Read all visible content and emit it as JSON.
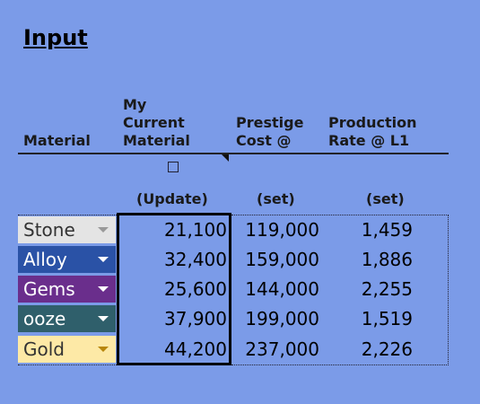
{
  "title": "Input",
  "headers": {
    "material": "Material",
    "current": [
      "My",
      "Current",
      "Material"
    ],
    "prestige": [
      "Prestige",
      "Cost @"
    ],
    "production": [
      "Production",
      "Rate @ L1"
    ]
  },
  "subheaders": {
    "current": "(Update)",
    "prestige": "(set)",
    "production": "(set)"
  },
  "rows": [
    {
      "material": "Stone",
      "bg": "#e4e4e4",
      "fg": "#333333",
      "arrow": "#999999",
      "current": "21,100",
      "prestige": "119,000",
      "rate": "1,459"
    },
    {
      "material": "Alloy",
      "bg": "#2a52a6",
      "fg": "#ffffff",
      "arrow": "#ffffff",
      "current": "32,400",
      "prestige": "159,000",
      "rate": "1,886"
    },
    {
      "material": "Gems",
      "bg": "#6a2e8c",
      "fg": "#ffffff",
      "arrow": "#ffffff",
      "current": "25,600",
      "prestige": "144,000",
      "rate": "2,255"
    },
    {
      "material": "ooze",
      "bg": "#2f5f6b",
      "fg": "#ffffff",
      "arrow": "#ffffff",
      "current": "37,900",
      "prestige": "199,000",
      "rate": "1,519"
    },
    {
      "material": "Gold",
      "bg": "#fde9a6",
      "fg": "#333333",
      "arrow": "#b8860b",
      "current": "44,200",
      "prestige": "237,000",
      "rate": "2,226"
    }
  ]
}
